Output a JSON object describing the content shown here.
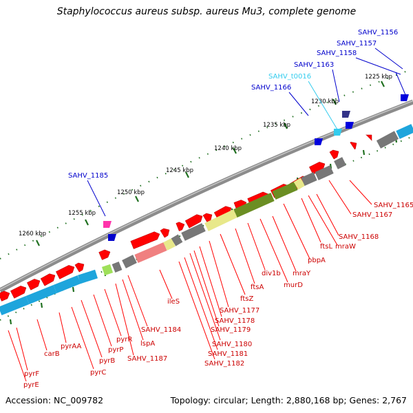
{
  "title": "Staphylococcus aureus subsp. aureus Mu3, complete genome",
  "footer": {
    "accession": "Accession: NC_009782",
    "summary": "Topology: circular; Length: 2,880,168 bp; Genes: 2,767"
  },
  "colors": {
    "backbone": "#8c8c8c",
    "forward_gene": "#ff0000",
    "reverse_label": "#cc0000",
    "forward_label": "#0000cc",
    "trna": "#33ccee",
    "tick": "#207020",
    "cog_blue": "#1ea5dc",
    "cog_olive": "#6b8e23",
    "cog_yellow": "#e8e88a",
    "cog_grey": "#777777",
    "cog_pink": "#f08080",
    "cog_lime": "#9fe05a"
  },
  "ticks": [
    {
      "label": "1225 kbp"
    },
    {
      "label": "1230 kbp"
    },
    {
      "label": "1235 kbp"
    },
    {
      "label": "1240 kbp"
    },
    {
      "label": "1245 kbp"
    },
    {
      "label": "1250 kbp"
    },
    {
      "label": "1255 kbp"
    },
    {
      "label": "1260 kbp"
    }
  ],
  "forward_labels": [
    {
      "text": "SAHV_1156",
      "color": "#0000cc"
    },
    {
      "text": "SAHV_1157",
      "color": "#0000cc"
    },
    {
      "text": "SAHV_1158",
      "color": "#0000cc"
    },
    {
      "text": "SAHV_1163",
      "color": "#0000cc"
    },
    {
      "text": "SAHV_t0016",
      "color": "#33ccee"
    },
    {
      "text": "SAHV_1166",
      "color": "#0000cc"
    },
    {
      "text": "SAHV_1185",
      "color": "#0000cc"
    }
  ],
  "reverse_labels": [
    {
      "text": "SAHV_1165"
    },
    {
      "text": "SAHV_1167"
    },
    {
      "text": "SAHV_1168"
    },
    {
      "text": "mraW"
    },
    {
      "text": "ftsL"
    },
    {
      "text": "pbpA"
    },
    {
      "text": "mraY"
    },
    {
      "text": "murD"
    },
    {
      "text": "div1b"
    },
    {
      "text": "ftsA"
    },
    {
      "text": "ftsZ"
    },
    {
      "text": "SAHV_1177"
    },
    {
      "text": "SAHV_1178"
    },
    {
      "text": "SAHV_1179"
    },
    {
      "text": "SAHV_1180"
    },
    {
      "text": "SAHV_1181"
    },
    {
      "text": "SAHV_1182"
    },
    {
      "text": "ileS"
    },
    {
      "text": "SAHV_1184"
    },
    {
      "text": "SAHV_1187"
    },
    {
      "text": "lspA"
    },
    {
      "text": "pyrR"
    },
    {
      "text": "pyrP"
    },
    {
      "text": "pyrB"
    },
    {
      "text": "pyrC"
    },
    {
      "text": "pyrAA"
    },
    {
      "text": "carB"
    },
    {
      "text": "pyrF"
    },
    {
      "text": "pyrE"
    }
  ]
}
